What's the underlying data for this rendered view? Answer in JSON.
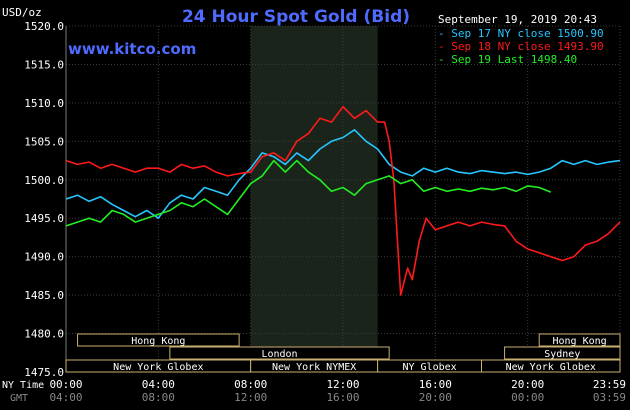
{
  "chart_data": {
    "type": "line",
    "title": "24 Hour Spot Gold (Bid)",
    "site": "www.kitco.com",
    "timestamp": "September 19, 2019 20:43",
    "y_unit_label": "USD/oz",
    "ylim": [
      1475.0,
      1520.0
    ],
    "y_ticks": [
      1475.0,
      1480.0,
      1485.0,
      1490.0,
      1495.0,
      1500.0,
      1505.0,
      1510.0,
      1515.0,
      1520.0
    ],
    "y_tick_labels": [
      "1475.0",
      "1480.0",
      "1485.0",
      "1490.0",
      "1495.0",
      "1500.0",
      "1505.0",
      "1510.0",
      "1515.0",
      "1520.0"
    ],
    "xlim": [
      0,
      24
    ],
    "x_axis_row_labels": [
      "NY Time",
      "GMT"
    ],
    "x_ticks": [
      0,
      4,
      8,
      12,
      16,
      20,
      24
    ],
    "x_tick_labels_ny": [
      "00:00",
      "04:00",
      "08:00",
      "12:00",
      "16:00",
      "20:00",
      "23:59"
    ],
    "x_tick_labels_gmt": [
      "04:00",
      "08:00",
      "12:00",
      "16:00",
      "20:00",
      "00:00",
      "03:59"
    ],
    "grid": true,
    "shaded_session": [
      8.0,
      13.5
    ],
    "legend": [
      {
        "label": "Sep 17 NY close 1500.90",
        "color": "#27c6ff"
      },
      {
        "label": "Sep 18 NY close 1493.90",
        "color": "#ff1a1a"
      },
      {
        "label": "Sep 19 Last 1498.40",
        "color": "#22ee22"
      }
    ],
    "series": [
      {
        "name": "Sep 17",
        "color": "#27c6ff",
        "x": [
          0,
          0.5,
          1,
          1.5,
          2,
          2.5,
          3,
          3.5,
          4,
          4.5,
          5,
          5.5,
          6,
          6.5,
          7,
          7.5,
          8,
          8.5,
          9,
          9.5,
          10,
          10.5,
          11,
          11.5,
          12,
          12.5,
          13,
          13.5,
          14,
          14.5,
          15,
          15.5,
          16,
          16.5,
          17,
          17.5,
          18,
          18.5,
          19,
          19.5,
          20,
          20.5,
          21,
          21.5,
          22,
          22.5,
          23,
          23.5,
          24
        ],
        "y": [
          1497.5,
          1498.0,
          1497.2,
          1497.8,
          1496.8,
          1496.0,
          1495.2,
          1496.0,
          1495.0,
          1497.0,
          1498.0,
          1497.5,
          1499.0,
          1498.5,
          1498.0,
          1500.0,
          1501.5,
          1503.5,
          1503.0,
          1502.0,
          1503.5,
          1502.5,
          1504.0,
          1505.0,
          1505.5,
          1506.5,
          1505.0,
          1504.0,
          1502.0,
          1501.0,
          1500.5,
          1501.5,
          1501.0,
          1501.5,
          1501.0,
          1500.8,
          1501.2,
          1501.0,
          1500.8,
          1501.0,
          1500.7,
          1501.0,
          1501.5,
          1502.5,
          1502.0,
          1502.5,
          1502.0,
          1502.3,
          1502.5
        ]
      },
      {
        "name": "Sep 18",
        "color": "#ff1a1a",
        "x": [
          0,
          0.5,
          1,
          1.5,
          2,
          2.5,
          3,
          3.5,
          4,
          4.5,
          5,
          5.5,
          6,
          6.5,
          7,
          7.5,
          8,
          8.5,
          9,
          9.5,
          10,
          10.5,
          11,
          11.5,
          12,
          12.5,
          13,
          13.5,
          13.8,
          14.0,
          14.2,
          14.5,
          14.8,
          15.0,
          15.3,
          15.6,
          16,
          16.5,
          17,
          17.5,
          18,
          18.5,
          19,
          19.5,
          20,
          20.5,
          21,
          21.5,
          22,
          22.5,
          23,
          23.5,
          24
        ],
        "y": [
          1502.5,
          1502.0,
          1502.3,
          1501.5,
          1502.0,
          1501.5,
          1501.0,
          1501.5,
          1501.5,
          1501.0,
          1502.0,
          1501.5,
          1501.8,
          1501.0,
          1500.5,
          1500.8,
          1501.0,
          1503.0,
          1503.5,
          1502.5,
          1505.0,
          1506.0,
          1508.0,
          1507.5,
          1509.5,
          1508.0,
          1509.0,
          1507.5,
          1507.5,
          1505.0,
          1500.0,
          1485.0,
          1488.5,
          1487.0,
          1492.0,
          1495.0,
          1493.5,
          1494.0,
          1494.5,
          1494.0,
          1494.5,
          1494.2,
          1494.0,
          1492.0,
          1491.0,
          1490.5,
          1490.0,
          1489.5,
          1490.0,
          1491.5,
          1492.0,
          1493.0,
          1494.5
        ]
      },
      {
        "name": "Sep 19",
        "color": "#22ee22",
        "x": [
          0,
          0.5,
          1,
          1.5,
          2,
          2.5,
          3,
          3.5,
          4,
          4.5,
          5,
          5.5,
          6,
          6.5,
          7,
          7.5,
          8,
          8.5,
          9,
          9.5,
          10,
          10.5,
          11,
          11.5,
          12,
          12.5,
          13,
          13.5,
          14,
          14.5,
          15,
          15.5,
          16,
          16.5,
          17,
          17.5,
          18,
          18.5,
          19,
          19.5,
          20,
          20.5,
          21
        ],
        "y": [
          1494.0,
          1494.5,
          1495.0,
          1494.5,
          1496.0,
          1495.5,
          1494.5,
          1495.0,
          1495.5,
          1496.0,
          1497.0,
          1496.5,
          1497.5,
          1496.5,
          1495.5,
          1497.5,
          1499.5,
          1500.5,
          1502.5,
          1501.0,
          1502.5,
          1501.0,
          1500.0,
          1498.5,
          1499.0,
          1498.0,
          1499.5,
          1500.0,
          1500.5,
          1499.5,
          1500.0,
          1498.5,
          1499.0,
          1498.5,
          1498.8,
          1498.5,
          1498.9,
          1498.7,
          1499.0,
          1498.5,
          1499.2,
          1499.0,
          1498.4
        ]
      }
    ],
    "sessions": [
      {
        "label": "Hong Kong",
        "row": 0,
        "start": 0.5,
        "end": 7.5
      },
      {
        "label": "London",
        "row": 1,
        "start": 4.5,
        "end": 14.0
      },
      {
        "label": "New York Globex",
        "row": 2,
        "start": 0.0,
        "end": 8.0
      },
      {
        "label": "New York NYMEX",
        "row": 2,
        "start": 8.0,
        "end": 13.5
      },
      {
        "label": "NY Globex",
        "row": 2,
        "start": 13.5,
        "end": 18.0
      },
      {
        "label": "Hong Kong",
        "row": 0,
        "start": 20.5,
        "end": 24.0
      },
      {
        "label": "Sydney",
        "row": 1,
        "start": 19.0,
        "end": 24.0
      },
      {
        "label": "New York Globex",
        "row": 2,
        "start": 18.0,
        "end": 24.0
      }
    ]
  }
}
